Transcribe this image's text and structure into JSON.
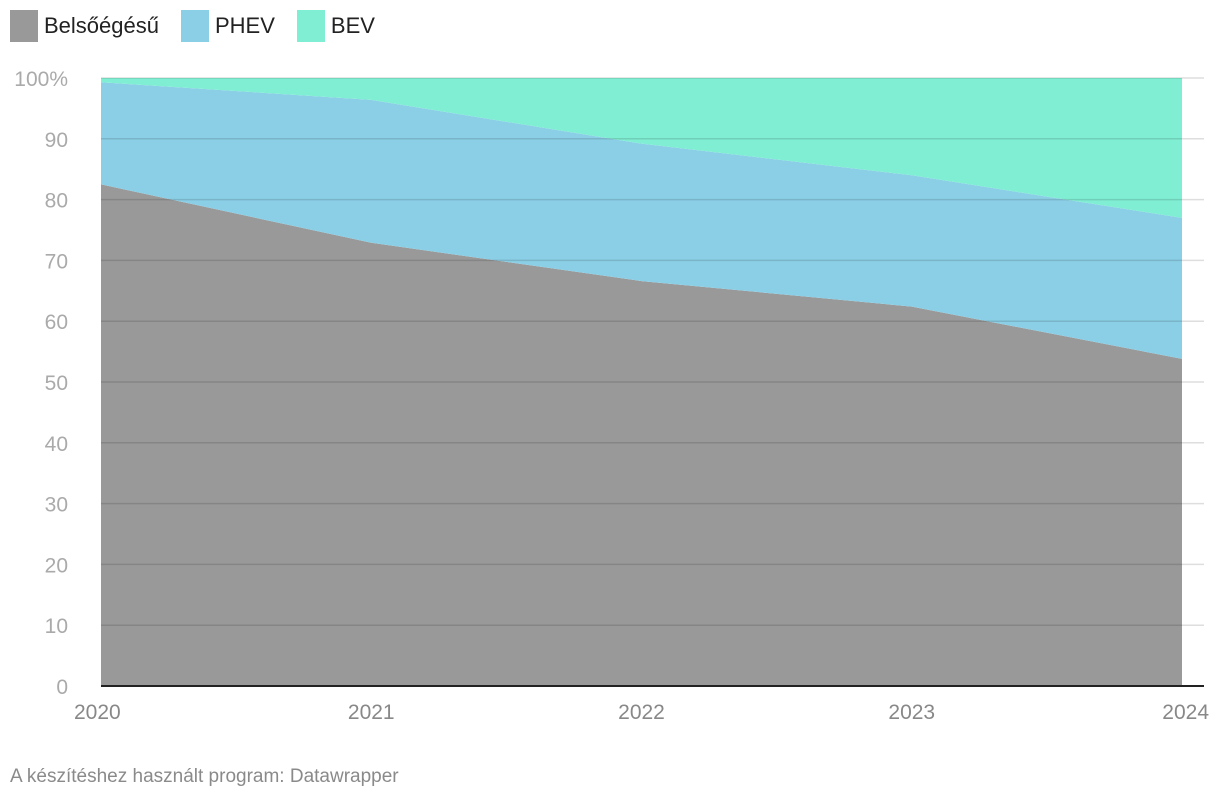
{
  "chart_data": {
    "type": "area",
    "stacked": true,
    "normalized": true,
    "x": [
      "2020",
      "2021",
      "2022",
      "2023",
      "2024"
    ],
    "series": [
      {
        "name": "Belsőégésű",
        "color": "#999999",
        "values": [
          82.5,
          72.9,
          66.6,
          62.4,
          53.8
        ]
      },
      {
        "name": "PHEV",
        "color": "#8bcfe6",
        "values": [
          16.8,
          23.5,
          22.6,
          21.6,
          23.2
        ]
      },
      {
        "name": "BEV",
        "color": "#80eed3",
        "values": [
          0.7,
          3.6,
          10.8,
          16.0,
          23.0
        ]
      }
    ],
    "ylim": [
      0,
      100
    ],
    "yticks": [
      0,
      10,
      20,
      30,
      40,
      50,
      60,
      70,
      80,
      90,
      100
    ],
    "ytick_labels": [
      "0",
      "10",
      "20",
      "30",
      "40",
      "50",
      "60",
      "70",
      "80",
      "90",
      "100%"
    ],
    "legend_position": "top-left",
    "grid": true
  },
  "footer": "A készítéshez használt program: Datawrapper"
}
